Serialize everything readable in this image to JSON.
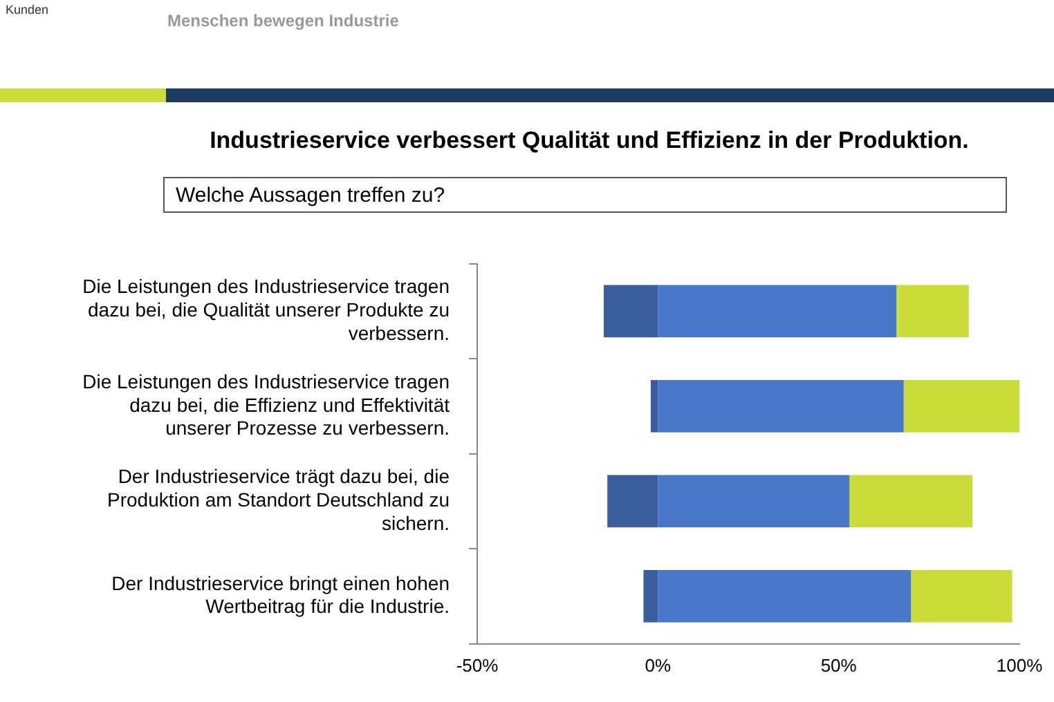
{
  "chart_data": {
    "type": "bar",
    "orientation": "horizontal",
    "stacked": true,
    "title": "Industrieservice verbessert Qualität und Effizienz in der Produktion.",
    "subtitle": "Welche Aussagen treffen zu?",
    "annotations": [
      "Kunden",
      "Menschen bewegen Industrie"
    ],
    "categories": [
      "Die Leistungen des Industrieservice tragen dazu bei, die Qualität unserer Produkte zu verbessern.",
      "Die Leistungen des Industrieservice tragen dazu bei, die Effizienz und Effektivität unserer Prozesse zu verbessern.",
      "Der Industrieservice trägt dazu bei, die Produktion am Standort Deutschland zu sichern.",
      "Der Industrieservice bringt einen hohen Wertbeitrag für die Industrie."
    ],
    "series": [
      {
        "color": "#3b5f9e",
        "values": [
          -15,
          -2,
          -14,
          -4
        ]
      },
      {
        "color": "#4a78c9",
        "values": [
          66,
          68,
          53,
          70
        ]
      },
      {
        "color": "#c9dc3a",
        "values": [
          20,
          32,
          34,
          28
        ]
      }
    ],
    "xlim": [
      -50,
      100
    ],
    "xticks": [
      {
        "value": -50,
        "label": "-50%"
      },
      {
        "value": 0,
        "label": "0%"
      },
      {
        "value": 50,
        "label": "50%"
      },
      {
        "value": 100,
        "label": "100%"
      }
    ],
    "grid": false,
    "legend": false
  }
}
